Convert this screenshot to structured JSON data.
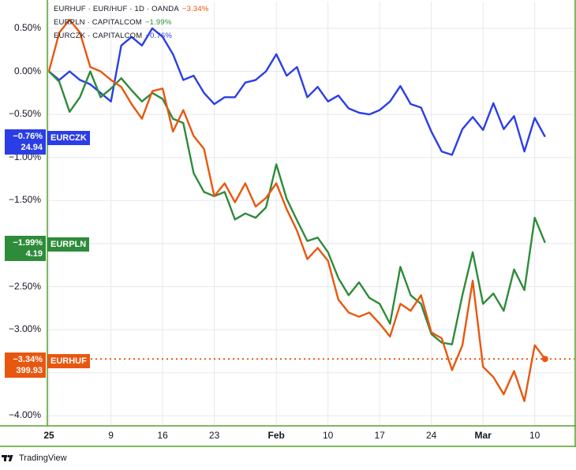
{
  "colors": {
    "eurczk": "#2b3ee6",
    "eurpln": "#2e8b3a",
    "eurhuf": "#e8570f",
    "grid": "#e6e8ee",
    "frame": "#56a12a"
  },
  "legend": [
    {
      "symbol": "EURHUF · EUR/HUF · 1D · OANDA",
      "value": "−3.34%",
      "color": "#e8570f"
    },
    {
      "symbol": "EURPLN · CAPITALCOM",
      "value": "−1.99%",
      "color": "#2e8b3a"
    },
    {
      "symbol": "EURCZK · CAPITALCOM",
      "value": "−0.76%",
      "color": "#2b3ee6"
    }
  ],
  "price_tags": {
    "eurczk": {
      "pct": "−0.76%",
      "price": "24.94",
      "name": "EURCZK"
    },
    "eurpln": {
      "pct": "−1.99%",
      "price": "4.19",
      "name": "EURPLN"
    },
    "eurhuf": {
      "pct": "−3.34%",
      "price": "399.93",
      "name": "EURHUF"
    }
  },
  "brand": "TradingView",
  "chart_data": {
    "type": "line",
    "yaxis_ticks": [
      "0.50%",
      "0.00%",
      "−0.50%",
      "−1.00%",
      "−1.50%",
      "−2.00%",
      "−2.50%",
      "−3.00%",
      "−3.50%",
      "−4.00%"
    ],
    "ylim": [
      -4.05,
      0.65
    ],
    "xaxis_ticks": [
      {
        "label": "25",
        "index": 0,
        "bold": true
      },
      {
        "label": "9",
        "index": 6
      },
      {
        "label": "16",
        "index": 11
      },
      {
        "label": "23",
        "index": 16
      },
      {
        "label": "Feb",
        "index": 22,
        "bold": true
      },
      {
        "label": "10",
        "index": 27
      },
      {
        "label": "17",
        "index": 32
      },
      {
        "label": "24",
        "index": 37
      },
      {
        "label": "Mar",
        "index": 42,
        "bold": true
      },
      {
        "label": "10",
        "index": 47
      }
    ],
    "grid": true,
    "series": [
      {
        "name": "EURCZK",
        "color": "#2b3ee6",
        "values": [
          0.0,
          -0.1,
          0.0,
          -0.1,
          -0.15,
          -0.25,
          -0.35,
          0.3,
          0.4,
          0.3,
          0.5,
          0.4,
          0.2,
          -0.1,
          -0.05,
          -0.25,
          -0.38,
          -0.3,
          -0.3,
          -0.13,
          -0.1,
          0.0,
          0.2,
          -0.05,
          0.05,
          -0.3,
          -0.18,
          -0.35,
          -0.28,
          -0.43,
          -0.48,
          -0.5,
          -0.45,
          -0.35,
          -0.17,
          -0.38,
          -0.42,
          -0.7,
          -0.93,
          -0.97,
          -0.67,
          -0.53,
          -0.68,
          -0.37,
          -0.67,
          -0.52,
          -0.93,
          -0.54,
          -0.76
        ]
      },
      {
        "name": "EURPLN",
        "color": "#2e8b3a",
        "values": [
          0.0,
          -0.12,
          -0.47,
          -0.3,
          0.0,
          -0.3,
          -0.2,
          -0.08,
          -0.22,
          -0.35,
          -0.25,
          -0.32,
          -0.55,
          -0.6,
          -1.18,
          -1.4,
          -1.45,
          -1.4,
          -1.72,
          -1.65,
          -1.7,
          -1.58,
          -1.08,
          -1.48,
          -1.73,
          -1.97,
          -1.93,
          -2.1,
          -2.4,
          -2.6,
          -2.45,
          -2.63,
          -2.7,
          -2.93,
          -2.27,
          -2.6,
          -2.7,
          -3.05,
          -3.15,
          -3.17,
          -2.6,
          -2.1,
          -2.7,
          -2.58,
          -2.78,
          -2.3,
          -2.54,
          -1.7,
          -1.99
        ]
      },
      {
        "name": "EURHUF",
        "color": "#e8570f",
        "values": [
          0.0,
          0.45,
          0.6,
          0.45,
          0.05,
          0.0,
          -0.1,
          -0.18,
          -0.38,
          -0.55,
          -0.23,
          -0.2,
          -0.7,
          -0.45,
          -0.75,
          -0.9,
          -1.45,
          -1.3,
          -1.52,
          -1.3,
          -1.57,
          -1.47,
          -1.3,
          -1.6,
          -1.85,
          -2.18,
          -2.05,
          -2.2,
          -2.65,
          -2.8,
          -2.85,
          -2.8,
          -2.93,
          -3.08,
          -2.7,
          -2.78,
          -2.6,
          -3.03,
          -3.1,
          -3.47,
          -3.18,
          -2.43,
          -3.43,
          -3.55,
          -3.75,
          -3.48,
          -3.83,
          -3.18,
          -3.34
        ]
      }
    ]
  }
}
